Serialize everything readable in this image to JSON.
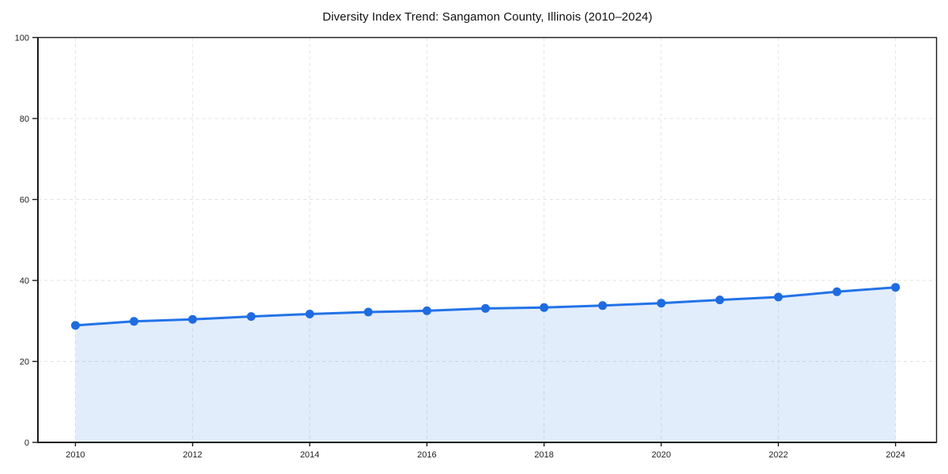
{
  "figure": {
    "background": "#ffffff"
  },
  "chart_data": {
    "type": "line",
    "title": "Diversity Index Trend: Sangamon County, Illinois (2010–2024)",
    "xlabel": "",
    "ylabel": "",
    "x": [
      2010,
      2011,
      2012,
      2013,
      2014,
      2015,
      2016,
      2017,
      2018,
      2019,
      2020,
      2021,
      2022,
      2023,
      2024
    ],
    "series": [
      {
        "name": "Diversity Index",
        "values": [
          28.9,
          29.9,
          30.4,
          31.1,
          31.7,
          32.2,
          32.5,
          33.1,
          33.3,
          33.8,
          34.4,
          35.2,
          35.9,
          37.2,
          38.3
        ]
      }
    ],
    "xlim": [
      2009.36,
      2024.7
    ],
    "ylim": [
      0,
      100
    ],
    "xticks": [
      2010,
      2012,
      2014,
      2016,
      2018,
      2020,
      2022,
      2024
    ],
    "yticks": [
      0,
      20,
      40,
      60,
      80,
      100
    ],
    "grid": true,
    "grid_style": "dashed",
    "legend": false,
    "area_fill": true,
    "marker": "circle",
    "colors": {
      "line": "#2273e8",
      "marker": "#1f6ce0",
      "area": "rgba(34, 115, 232, 0.13)",
      "grid": "#e2e2e2",
      "spine": "#1a1a1a",
      "tick_label": "#222222",
      "title": "#111111"
    }
  }
}
